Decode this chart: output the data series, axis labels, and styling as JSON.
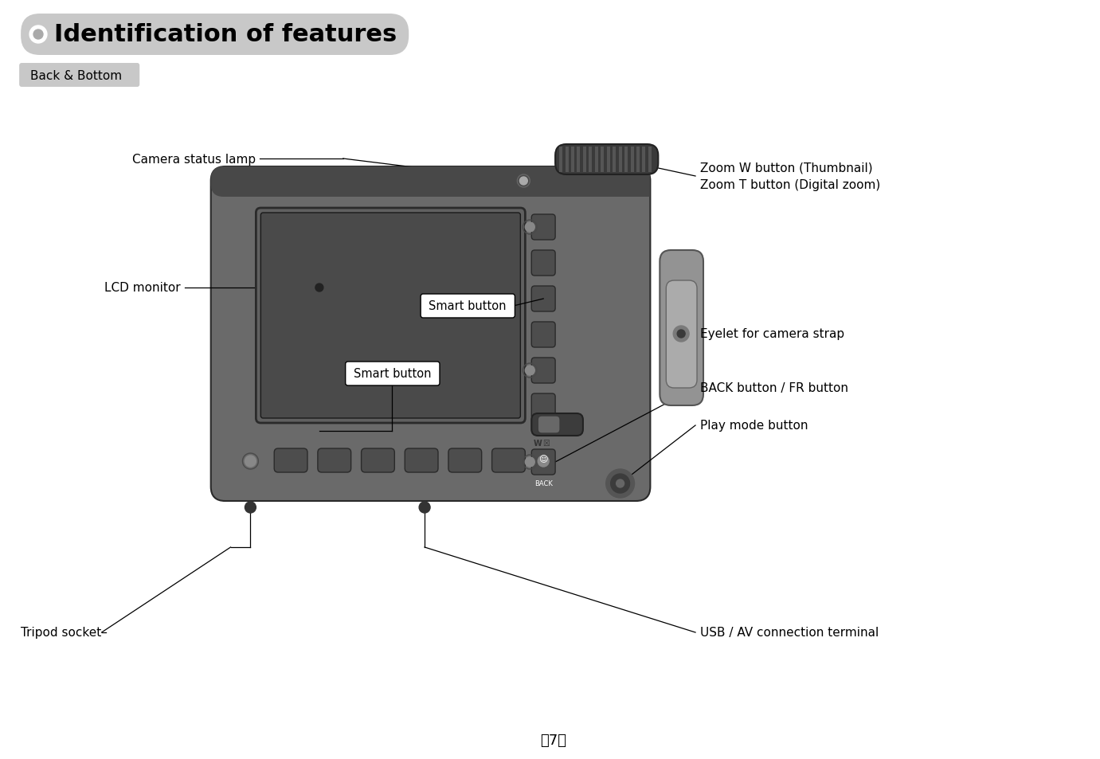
{
  "bg_color": "#ffffff",
  "title": "Identification of features",
  "subtitle": "Back & Bottom",
  "title_bg": "#c8c8c8",
  "subtitle_bg": "#c8c8c8",
  "camera_body": "#6a6a6a",
  "camera_top_bar": "#484848",
  "camera_darker": "#404040",
  "screen_outer": "#5e5e5e",
  "screen_inner": "#4a4a4a",
  "button_col": "#4d4d4d",
  "button_dark": "#434343",
  "door_light": "#909090",
  "door_inner_light": "#a8a8a8",
  "font_size_title": 22,
  "font_size_subtitle": 11,
  "font_size_label": 11,
  "font_size_page": 13,
  "page_number": "7",
  "labels": {
    "camera_status_lamp": "Camera status lamp",
    "zoom_wt": "Zoom W button (Thumbnail)\nZoom T button (Digital zoom)",
    "lcd_monitor": "LCD monitor",
    "smart_button_top": "Smart button",
    "smart_button_bottom": "Smart button",
    "eyelet": "Eyelet for camera strap",
    "back_button": "BACK button / FR button",
    "play_mode": "Play mode button",
    "tripod": "Tripod socket",
    "usb_av": "USB / AV connection terminal"
  }
}
